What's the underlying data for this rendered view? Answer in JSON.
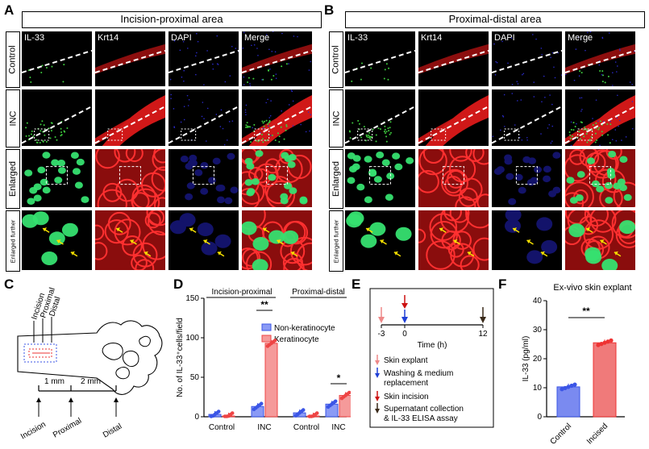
{
  "panel_letters": {
    "A": "A",
    "B": "B",
    "C": "C",
    "D": "D",
    "E": "E",
    "F": "F"
  },
  "panelA": {
    "title": "Incision-proximal area",
    "columns": [
      "IL-33",
      "Krt14",
      "DAPI",
      "Merge"
    ],
    "rows": [
      "Control",
      "INC",
      "Enlarged",
      "Enlarged further"
    ]
  },
  "panelB": {
    "title": "Proximal-distal area",
    "columns": [
      "IL-33",
      "Krt14",
      "DAPI",
      "Merge"
    ],
    "rows": [
      "Control",
      "INC",
      "Enlarged",
      "Enlarged further"
    ]
  },
  "panelC": {
    "site_labels": [
      "Incision",
      "Proximal",
      "Distal"
    ],
    "distances": [
      "1 mm",
      "2 mm"
    ],
    "axis_labels": [
      "Incision",
      "Proximal",
      "Distal"
    ]
  },
  "panelE": {
    "ticks": [
      "-3",
      "0",
      "12"
    ],
    "axis_label": "Time (h)",
    "legend": [
      {
        "label": "Skin explant",
        "color": "#ee8888"
      },
      {
        "label": "Washing & medium replacement",
        "color": "#1f3fd6"
      },
      {
        "label": "Skin incision",
        "color": "#cc1111"
      },
      {
        "label": "Supernatant collection & IL-33 ELISA assay",
        "color": "#3a2a1a"
      }
    ]
  },
  "chart_data": [
    {
      "type": "bar",
      "panel": "D",
      "ylabel": "No. of IL-33⁺cells/field",
      "ylim": [
        0,
        150
      ],
      "yticks": [
        "0",
        "50",
        "100",
        "150"
      ],
      "categories": [
        "Control",
        "INC",
        "Control",
        "INC"
      ],
      "groups": [
        "Incision-proximal",
        "Proximal-distal"
      ],
      "series": [
        {
          "name": "Non-keratinocyte",
          "color": "#3b55e6",
          "values": [
            3,
            13,
            5,
            16
          ]
        },
        {
          "name": "Keratinocyte",
          "color": "#ee4444",
          "values": [
            1,
            93,
            1,
            27
          ]
        }
      ],
      "significance": [
        "**",
        "*"
      ],
      "legend": "top-right"
    },
    {
      "type": "bar",
      "panel": "F",
      "title": "Ex-vivo skin explant",
      "ylabel": "IL-33 (pg/ml)",
      "ylim": [
        0,
        40
      ],
      "yticks": [
        "0",
        "10",
        "20",
        "30",
        "40"
      ],
      "categories": [
        "Control",
        "Incised"
      ],
      "values": [
        10.3,
        25.5
      ],
      "colors": [
        "#7a8af0",
        "#f07a7a"
      ],
      "edge_colors": [
        "#3b55e6",
        "#ee3333"
      ],
      "significance": "**"
    }
  ]
}
